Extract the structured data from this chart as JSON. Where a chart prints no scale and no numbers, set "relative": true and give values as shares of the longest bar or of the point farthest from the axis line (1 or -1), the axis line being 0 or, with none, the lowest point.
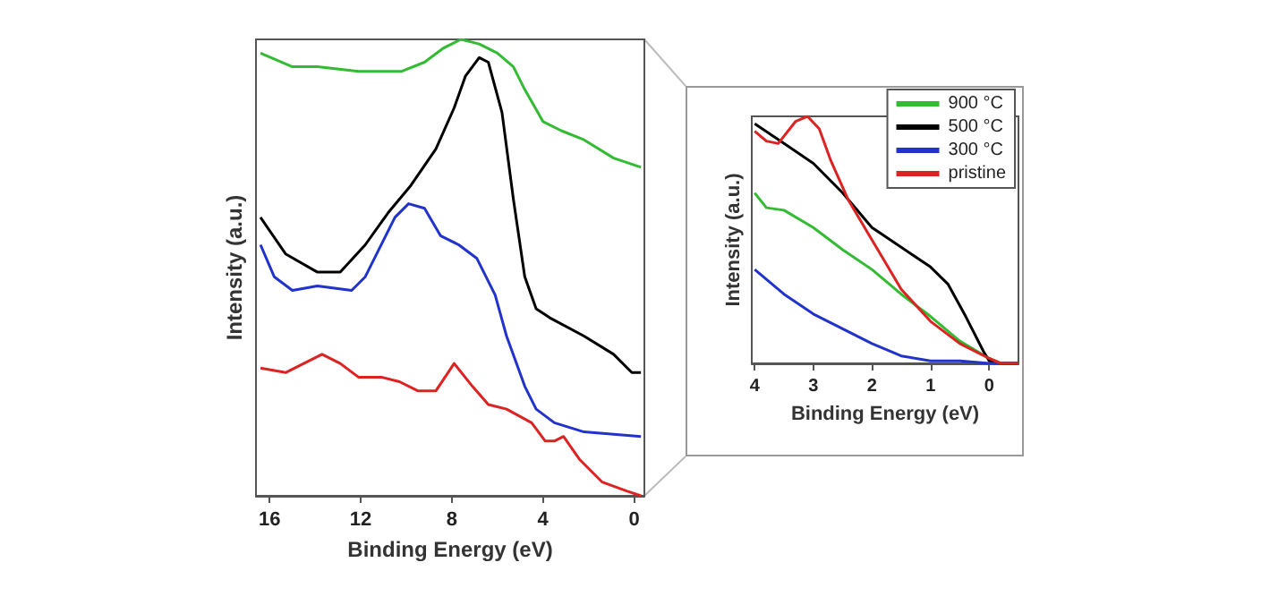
{
  "chart_data": [
    {
      "type": "line",
      "xlabel": "Binding Energy (eV)",
      "ylabel": "Intensity (a.u.)",
      "relative": true,
      "xlim": [
        16.6,
        -0.45
      ],
      "xticks": [
        16,
        12,
        8,
        4,
        0
      ],
      "grid": false,
      "legend": false,
      "marker": "none",
      "series": [
        {
          "color": "#33bb33",
          "x": [
            16.4,
            15.0,
            13.9,
            12.1,
            10.2,
            9.2,
            8.4,
            7.6,
            6.8,
            6.0,
            5.3,
            4.8,
            4.0,
            3.2,
            2.2,
            0.9,
            -0.3
          ],
          "values": [
            0.97,
            0.94,
            0.94,
            0.93,
            0.93,
            0.95,
            0.98,
            1.0,
            0.99,
            0.97,
            0.94,
            0.89,
            0.82,
            0.8,
            0.78,
            0.74,
            0.72
          ]
        },
        {
          "color": "#000000",
          "x": [
            16.4,
            15.3,
            13.9,
            12.9,
            11.8,
            10.8,
            9.8,
            8.7,
            7.9,
            7.4,
            6.8,
            6.4,
            5.8,
            5.3,
            4.8,
            4.3,
            3.7,
            2.2,
            0.9,
            0.1,
            -0.3
          ],
          "values": [
            0.61,
            0.53,
            0.49,
            0.49,
            0.55,
            0.62,
            0.68,
            0.76,
            0.85,
            0.92,
            0.96,
            0.95,
            0.84,
            0.65,
            0.48,
            0.41,
            0.39,
            0.35,
            0.31,
            0.27,
            0.27
          ]
        },
        {
          "color": "#2233cc",
          "x": [
            16.4,
            15.8,
            15.0,
            13.9,
            12.4,
            11.8,
            11.3,
            10.5,
            9.9,
            9.2,
            8.5,
            7.7,
            6.9,
            6.1,
            5.6,
            4.8,
            4.3,
            3.5,
            2.2,
            -0.3
          ],
          "values": [
            0.55,
            0.48,
            0.45,
            0.46,
            0.45,
            0.48,
            0.53,
            0.61,
            0.64,
            0.63,
            0.57,
            0.55,
            0.52,
            0.44,
            0.35,
            0.24,
            0.19,
            0.16,
            0.14,
            0.13
          ]
        },
        {
          "color": "#dd2222",
          "x": [
            16.4,
            15.3,
            13.7,
            12.9,
            12.1,
            11.1,
            10.3,
            9.5,
            8.7,
            7.9,
            7.1,
            6.4,
            5.6,
            4.5,
            3.9,
            3.5,
            3.1,
            2.4,
            1.4,
            0.3,
            -0.3
          ],
          "values": [
            0.28,
            0.27,
            0.31,
            0.29,
            0.26,
            0.26,
            0.25,
            0.23,
            0.23,
            0.29,
            0.24,
            0.2,
            0.19,
            0.16,
            0.12,
            0.12,
            0.13,
            0.08,
            0.03,
            0.01,
            0
          ]
        }
      ]
    },
    {
      "type": "line",
      "xlabel": "Binding Energy (eV)",
      "ylabel": "Intensity (a.u.)",
      "relative": true,
      "xlim": [
        4.05,
        -0.5
      ],
      "xticks": [
        4,
        3,
        2,
        1,
        0
      ],
      "grid": false,
      "legend": "top right",
      "marker": "none",
      "series": [
        {
          "name": "900 °C",
          "color": "#33bb33",
          "x": [
            4.0,
            3.8,
            3.5,
            3.0,
            2.5,
            2.0,
            1.5,
            1.0,
            0.5,
            0.0,
            -0.2,
            -0.5
          ],
          "values": [
            0.69,
            0.63,
            0.62,
            0.55,
            0.46,
            0.38,
            0.28,
            0.19,
            0.09,
            0.02,
            0,
            0
          ]
        },
        {
          "name": "500 °C",
          "color": "#000000",
          "x": [
            4.0,
            3.5,
            3.0,
            2.5,
            2.0,
            1.5,
            1.0,
            0.7,
            0.4,
            0.1,
            0.0,
            -0.2,
            -0.5
          ],
          "values": [
            0.97,
            0.89,
            0.81,
            0.69,
            0.55,
            0.47,
            0.39,
            0.32,
            0.19,
            0.05,
            0.01,
            0,
            0
          ]
        },
        {
          "name": "300 °C",
          "color": "#2233cc",
          "x": [
            4.0,
            3.5,
            3.0,
            2.5,
            2.0,
            1.5,
            1.0,
            0.5,
            0.0,
            -0.5
          ],
          "values": [
            0.38,
            0.28,
            0.2,
            0.14,
            0.08,
            0.03,
            0.01,
            0.01,
            0,
            0
          ]
        },
        {
          "name": "pristine",
          "color": "#dd2222",
          "x": [
            4.0,
            3.8,
            3.6,
            3.3,
            3.1,
            2.9,
            2.7,
            2.4,
            2.1,
            1.8,
            1.5,
            1.0,
            0.5,
            0.0,
            -0.2,
            -0.5
          ],
          "values": [
            0.94,
            0.9,
            0.89,
            0.98,
            1.0,
            0.95,
            0.82,
            0.66,
            0.54,
            0.42,
            0.3,
            0.17,
            0.08,
            0.02,
            0,
            0
          ]
        }
      ]
    }
  ]
}
